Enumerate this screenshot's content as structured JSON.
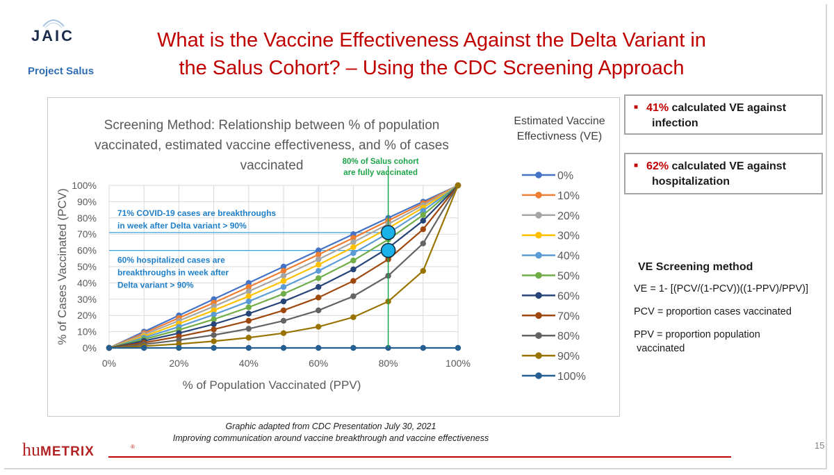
{
  "header": {
    "logo_text": "JAIC",
    "logo_subtitle": "Project Salus",
    "title_line1": "What is the Vaccine Effectiveness Against the Delta Variant in",
    "title_line2": "the Salus Cohort? – Using the CDC Screening Approach"
  },
  "callouts": [
    {
      "pct": "41%",
      "text_a": " calculated VE against",
      "text_b": "infection"
    },
    {
      "pct": "62%",
      "text_a": " calculated VE against",
      "text_b": "hospitalization"
    }
  ],
  "ve_method": {
    "heading": "VE Screening method",
    "formula": "VE = 1- [(PCV/(1-PCV))((1-PPV)/PPV)]",
    "pcv_def": "PCV = proportion cases vaccinated",
    "ppv_def_1": "PPV = proportion population",
    "ppv_def_2": "vaccinated"
  },
  "source": {
    "line1": "Graphic adapted from CDC Presentation July 30, 2021",
    "line2": "Improving communication around vaccine breakthrough and vaccine effectiveness"
  },
  "footer": {
    "brand": "huMETRIX",
    "page": "15"
  },
  "colors": {
    "title_red": "#c00000",
    "accent_blue": "#2f6db3",
    "annotation_blue": "#1f7fc8",
    "annotation_green": "#1ea44a",
    "marker_cyan": "#1ab2e8"
  },
  "chart_data": {
    "type": "line",
    "title_lines": [
      "Screening Method: Relationship between % of population",
      "vaccinated, estimated vaccine effectiveness, and % of cases",
      "vaccinated"
    ],
    "xlabel": "% of Population Vaccinated (PPV)",
    "ylabel": "% of Cases Vaccinated (PCV)",
    "legend_title_lines": [
      "Estimated Vaccine",
      "Effectivness (VE)"
    ],
    "legend_position": "right",
    "grid": true,
    "x": [
      0,
      10,
      20,
      30,
      40,
      50,
      60,
      70,
      80,
      90,
      100
    ],
    "x_tick_labels": [
      "0%",
      "20%",
      "40%",
      "60%",
      "80%",
      "100%"
    ],
    "x_tick_values": [
      0,
      20,
      40,
      60,
      80,
      100
    ],
    "y_tick_labels": [
      "0%",
      "10%",
      "20%",
      "30%",
      "40%",
      "50%",
      "60%",
      "70%",
      "80%",
      "90%",
      "100%"
    ],
    "xlim": [
      0,
      100
    ],
    "ylim": [
      0,
      100
    ],
    "series": [
      {
        "name": "0%",
        "ve": 0,
        "color": "#4472c4",
        "values": [
          0,
          10,
          20,
          30,
          40,
          50,
          60,
          70,
          80,
          90,
          100
        ]
      },
      {
        "name": "10%",
        "ve": 10,
        "color": "#ed7d31",
        "values": [
          0,
          9.1,
          18.4,
          27.8,
          37.5,
          47.4,
          57.4,
          67.7,
          78.3,
          89,
          100
        ]
      },
      {
        "name": "20%",
        "ve": 20,
        "color": "#a5a5a5",
        "values": [
          0,
          8.2,
          16.7,
          25.5,
          34.8,
          44.4,
          54.5,
          65.1,
          76.2,
          87.8,
          100
        ]
      },
      {
        "name": "30%",
        "ve": 30,
        "color": "#ffc000",
        "values": [
          0,
          7.2,
          14.9,
          23.1,
          31.8,
          41.2,
          51.2,
          62,
          73.7,
          86.3,
          100
        ]
      },
      {
        "name": "40%",
        "ve": 40,
        "color": "#5b9bd5",
        "values": [
          0,
          6.3,
          13,
          20.5,
          28.6,
          37.5,
          47.4,
          58.3,
          70.6,
          84.4,
          100
        ]
      },
      {
        "name": "50%",
        "ve": 50,
        "color": "#70ad47",
        "values": [
          0,
          5.3,
          11.1,
          17.6,
          25,
          33.3,
          42.9,
          53.8,
          66.7,
          81.8,
          100
        ]
      },
      {
        "name": "60%",
        "ve": 60,
        "color": "#264478",
        "values": [
          0,
          4.3,
          9.1,
          14.6,
          21.1,
          28.6,
          37.5,
          48.3,
          61.5,
          78.3,
          100
        ]
      },
      {
        "name": "70%",
        "ve": 70,
        "color": "#9e480e",
        "values": [
          0,
          3.2,
          7,
          11.4,
          16.7,
          23.1,
          31,
          41.2,
          54.5,
          73,
          100
        ]
      },
      {
        "name": "80%",
        "ve": 80,
        "color": "#636363",
        "values": [
          0,
          2.2,
          4.8,
          7.9,
          11.8,
          16.7,
          23.1,
          31.8,
          44.4,
          64.3,
          100
        ]
      },
      {
        "name": "90%",
        "ve": 90,
        "color": "#997300",
        "values": [
          0,
          1.1,
          2.4,
          4.1,
          6.3,
          9.1,
          13,
          18.9,
          28.6,
          47.4,
          100
        ]
      },
      {
        "name": "100%",
        "ve": 100,
        "color": "#255e91",
        "values": [
          0,
          0,
          0,
          0,
          0,
          0,
          0,
          0,
          0,
          0,
          0
        ]
      }
    ],
    "annotations": {
      "vline_x": 80,
      "vline_label_1": "80% of Salus cohort",
      "vline_label_2": "are fully vaccinated",
      "hline1_y": 71,
      "hline1_text_1": "71% COVID-19 cases are breakthroughs",
      "hline1_text_2": "in week after Delta variant > 90%",
      "hline2_y": 60,
      "hline2_text_1": "60% hospitalized cases are",
      "hline2_text_2": "breakthroughs in week after",
      "hline2_text_3": "Delta variant > 90%",
      "markers": [
        {
          "x": 80,
          "y": 71
        },
        {
          "x": 80,
          "y": 60
        }
      ]
    }
  }
}
